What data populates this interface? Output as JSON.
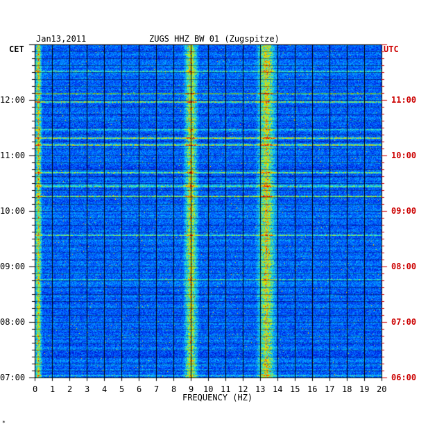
{
  "header": {
    "date": "Jan13,2011",
    "station": "ZUGS HHZ BW 01 (Zugspitze)",
    "left_zone": "CET",
    "right_zone": "UTC"
  },
  "chart_data": {
    "type": "heatmap",
    "title": "ZUGS HHZ BW 01 (Zugspitze)",
    "date": "Jan13,2011",
    "xlabel": "FREQUENCY (HZ)",
    "xlim": [
      0,
      20
    ],
    "x_ticks": [
      "0",
      "1",
      "2",
      "3",
      "4",
      "5",
      "6",
      "7",
      "8",
      "9",
      "10",
      "11",
      "12",
      "13",
      "14",
      "15",
      "16",
      "17",
      "18",
      "19",
      "20"
    ],
    "y_left_label": "CET",
    "y_right_label": "UTC",
    "y_left_ticks": [
      "12:00",
      "11:00",
      "10:00",
      "09:00",
      "08:00",
      "07:00"
    ],
    "y_right_ticks": [
      "11:00",
      "10:00",
      "09:00",
      "08:00",
      "07:00",
      "06:00"
    ],
    "colormap": [
      "#00007a",
      "#0010c8",
      "#0050ff",
      "#00a8ff",
      "#30e8d0",
      "#c8f000",
      "#ffc800",
      "#ff3000",
      "#c00000"
    ],
    "features": [
      {
        "desc": "energy band",
        "freq_hz": [
          8.6,
          9.4
        ]
      },
      {
        "desc": "strong energy band",
        "freq_hz": [
          12.8,
          13.9
        ]
      },
      {
        "desc": "low frequency band",
        "freq_hz": [
          0,
          0.4
        ]
      }
    ],
    "grid": true
  },
  "footer": {
    "mark": "*"
  }
}
